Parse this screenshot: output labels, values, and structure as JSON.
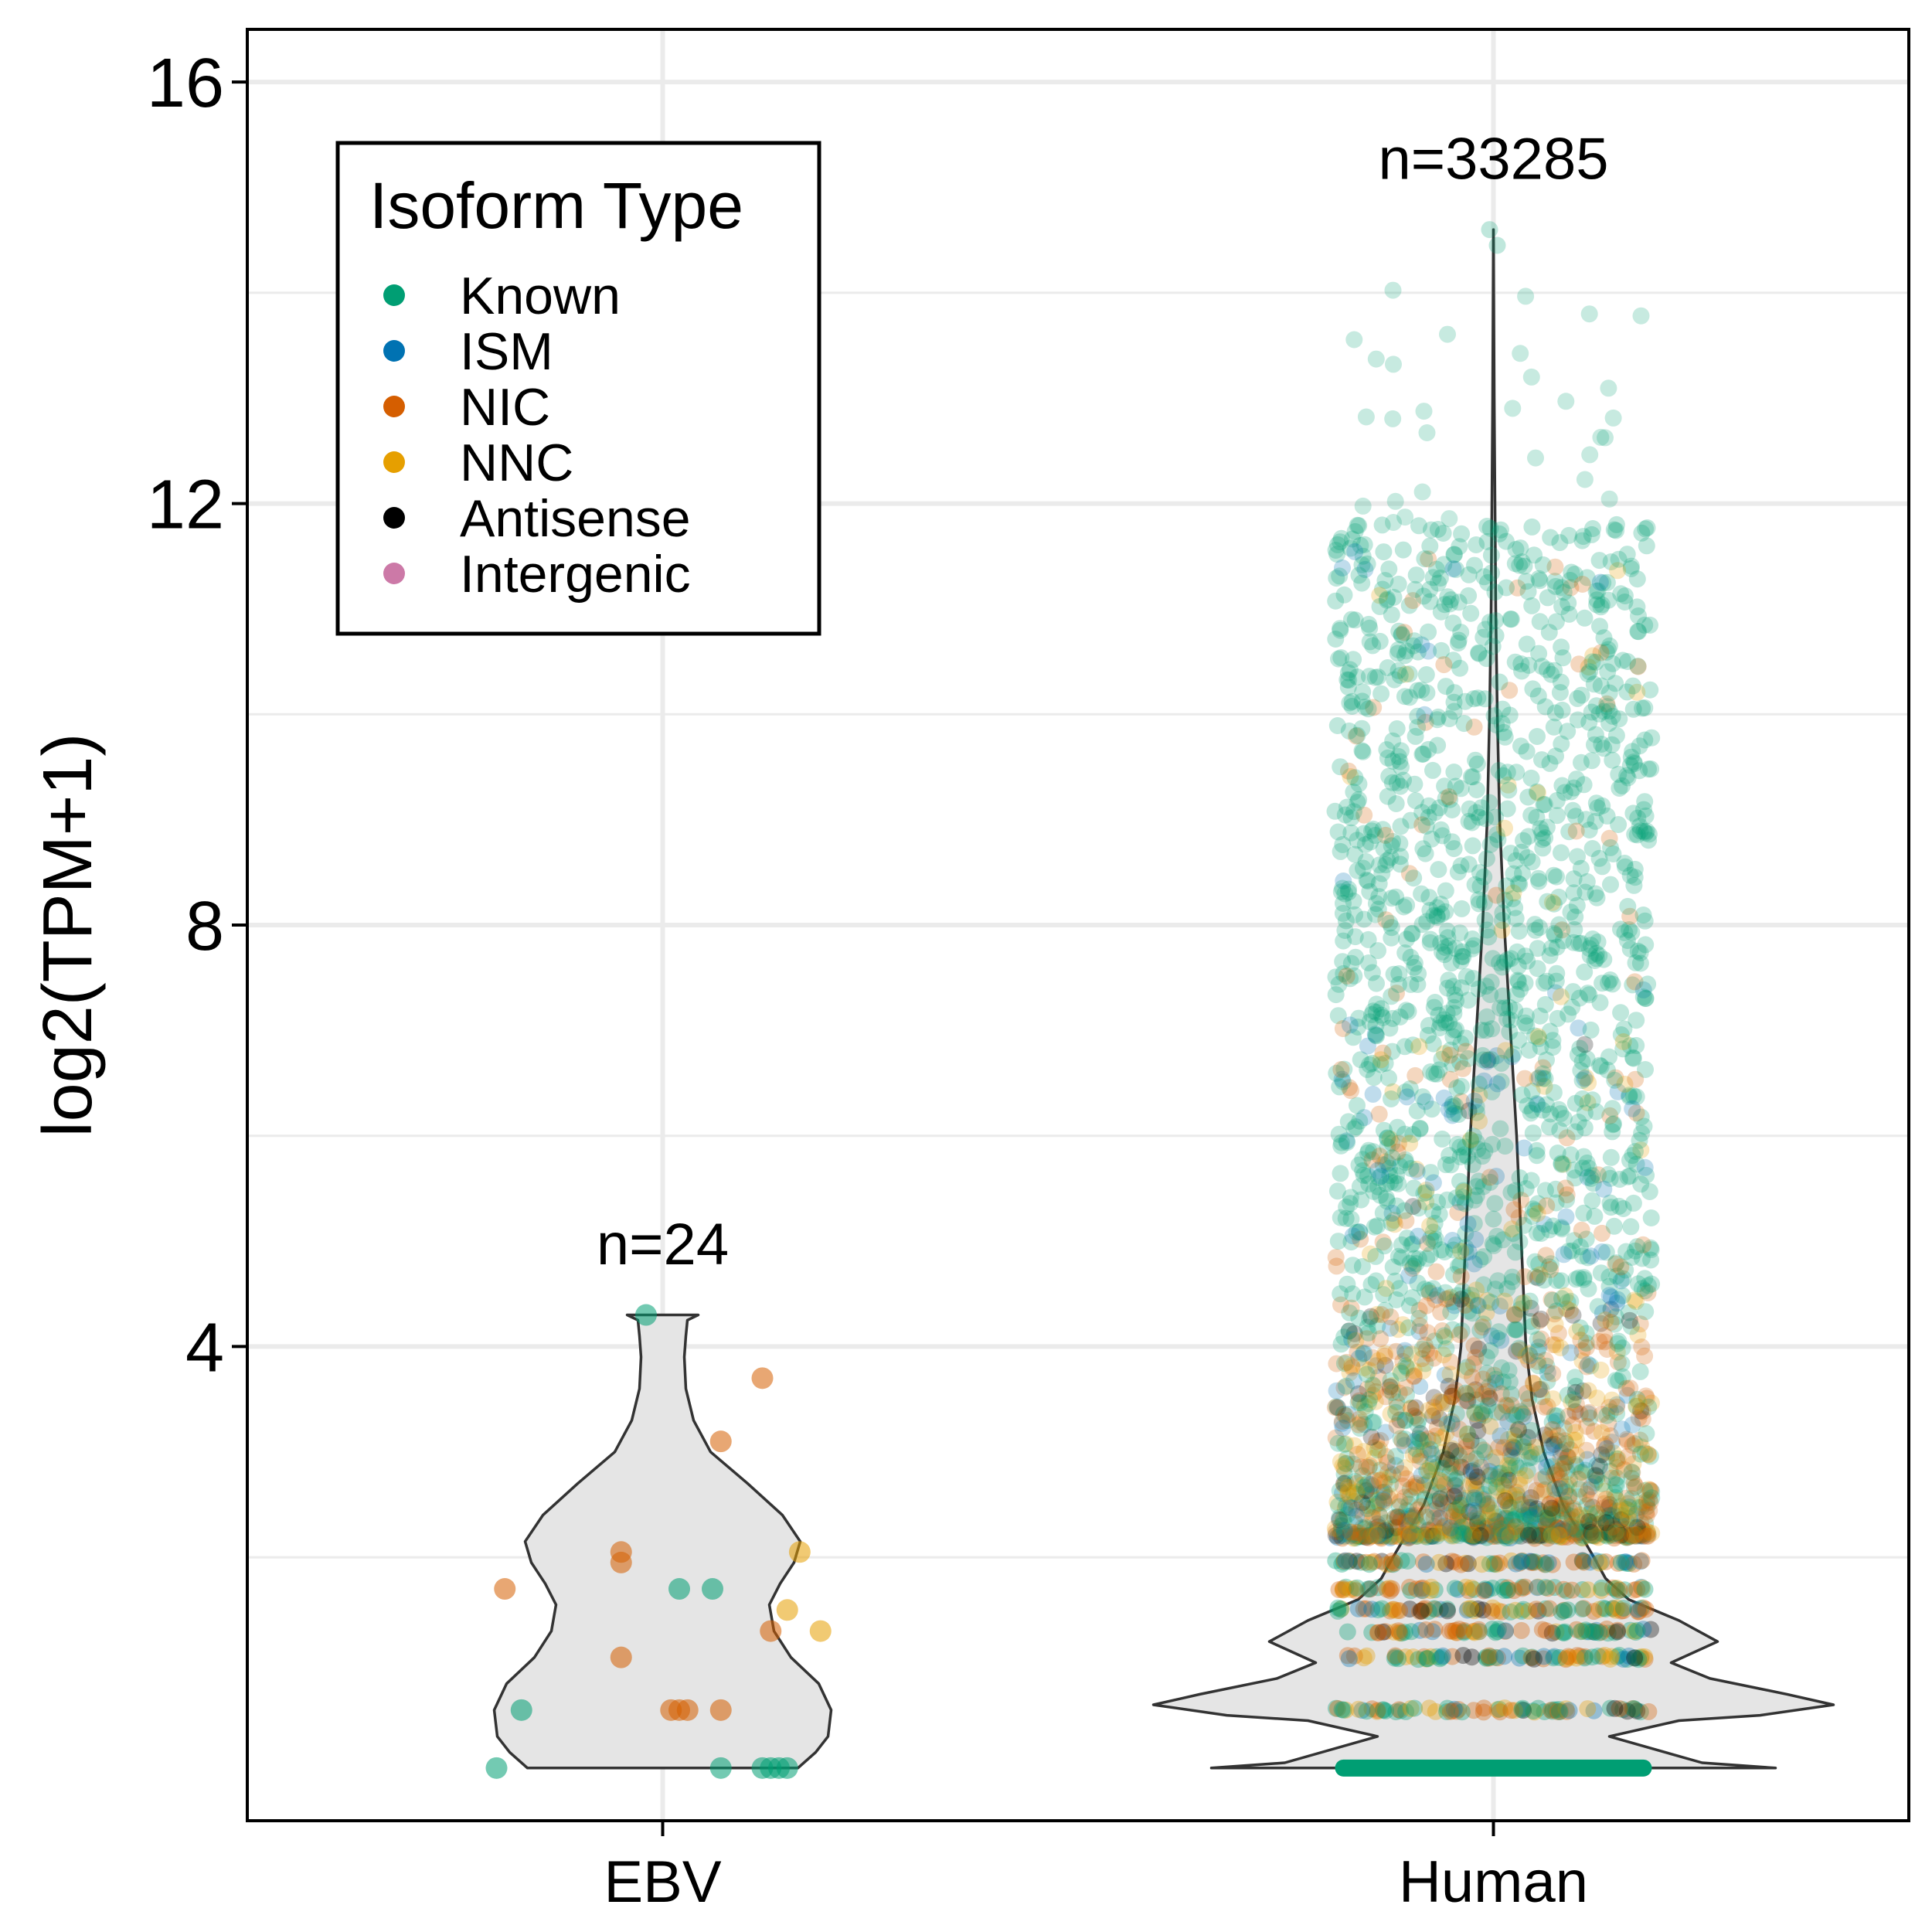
{
  "chart_data": {
    "type": "violin",
    "ylabel": "log2(TPM+1)",
    "xlabel": "",
    "ylim": [
      -0.5,
      16.5
    ],
    "yticks": [
      4,
      8,
      12,
      16
    ],
    "categories": [
      "EBV",
      "Human"
    ],
    "grid": true,
    "legend": {
      "title": "Isoform Type",
      "placement": "top-left",
      "entries": [
        {
          "name": "Known",
          "color": "#009E73"
        },
        {
          "name": "ISM",
          "color": "#0072B2"
        },
        {
          "name": "NIC",
          "color": "#D55E00"
        },
        {
          "name": "NNC",
          "color": "#E69F00"
        },
        {
          "name": "Antisense",
          "color": "#000000"
        },
        {
          "name": "Intergenic",
          "color": "#CC79A7"
        }
      ]
    },
    "groups": [
      {
        "category": "EBV",
        "count_label": "n=24",
        "count": 24,
        "range": [
          0.0,
          4.3
        ],
        "points": [
          {
            "x": -0.2,
            "y": 0.0,
            "type": "Known"
          },
          {
            "x": -0.17,
            "y": 0.55,
            "type": "Known"
          },
          {
            "x": -0.19,
            "y": 1.7,
            "type": "NIC"
          },
          {
            "x": -0.05,
            "y": 1.95,
            "type": "NIC"
          },
          {
            "x": -0.05,
            "y": 1.05,
            "type": "NIC"
          },
          {
            "x": -0.05,
            "y": 2.05,
            "type": "NIC"
          },
          {
            "x": -0.02,
            "y": 4.3,
            "type": "Known"
          },
          {
            "x": 0.02,
            "y": 0.55,
            "type": "NIC"
          },
          {
            "x": 0.03,
            "y": 0.55,
            "type": "NIC"
          },
          {
            "x": 0.02,
            "y": 1.7,
            "type": "Known"
          },
          {
            "x": 0.06,
            "y": 1.7,
            "type": "Known"
          },
          {
            "x": 0.07,
            "y": 0.55,
            "type": "NIC"
          },
          {
            "x": 0.07,
            "y": 0.0,
            "type": "Known"
          },
          {
            "x": 0.07,
            "y": 3.1,
            "type": "NIC"
          },
          {
            "x": 0.12,
            "y": 3.7,
            "type": "NIC"
          },
          {
            "x": 0.13,
            "y": 1.3,
            "type": "NIC"
          },
          {
            "x": 0.12,
            "y": 0.0,
            "type": "Known"
          },
          {
            "x": 0.13,
            "y": 0.0,
            "type": "Known"
          },
          {
            "x": 0.14,
            "y": 0.0,
            "type": "Known"
          },
          {
            "x": 0.15,
            "y": 0.0,
            "type": "Known"
          },
          {
            "x": 0.15,
            "y": 1.5,
            "type": "NNC"
          },
          {
            "x": 0.165,
            "y": 2.05,
            "type": "NNC"
          },
          {
            "x": 0.19,
            "y": 1.3,
            "type": "NNC"
          },
          {
            "x": 0.01,
            "y": 0.55,
            "type": "NIC"
          }
        ]
      },
      {
        "category": "Human",
        "count_label": "n=33285",
        "count": 33285,
        "range": [
          0.0,
          14.6
        ]
      }
    ]
  }
}
